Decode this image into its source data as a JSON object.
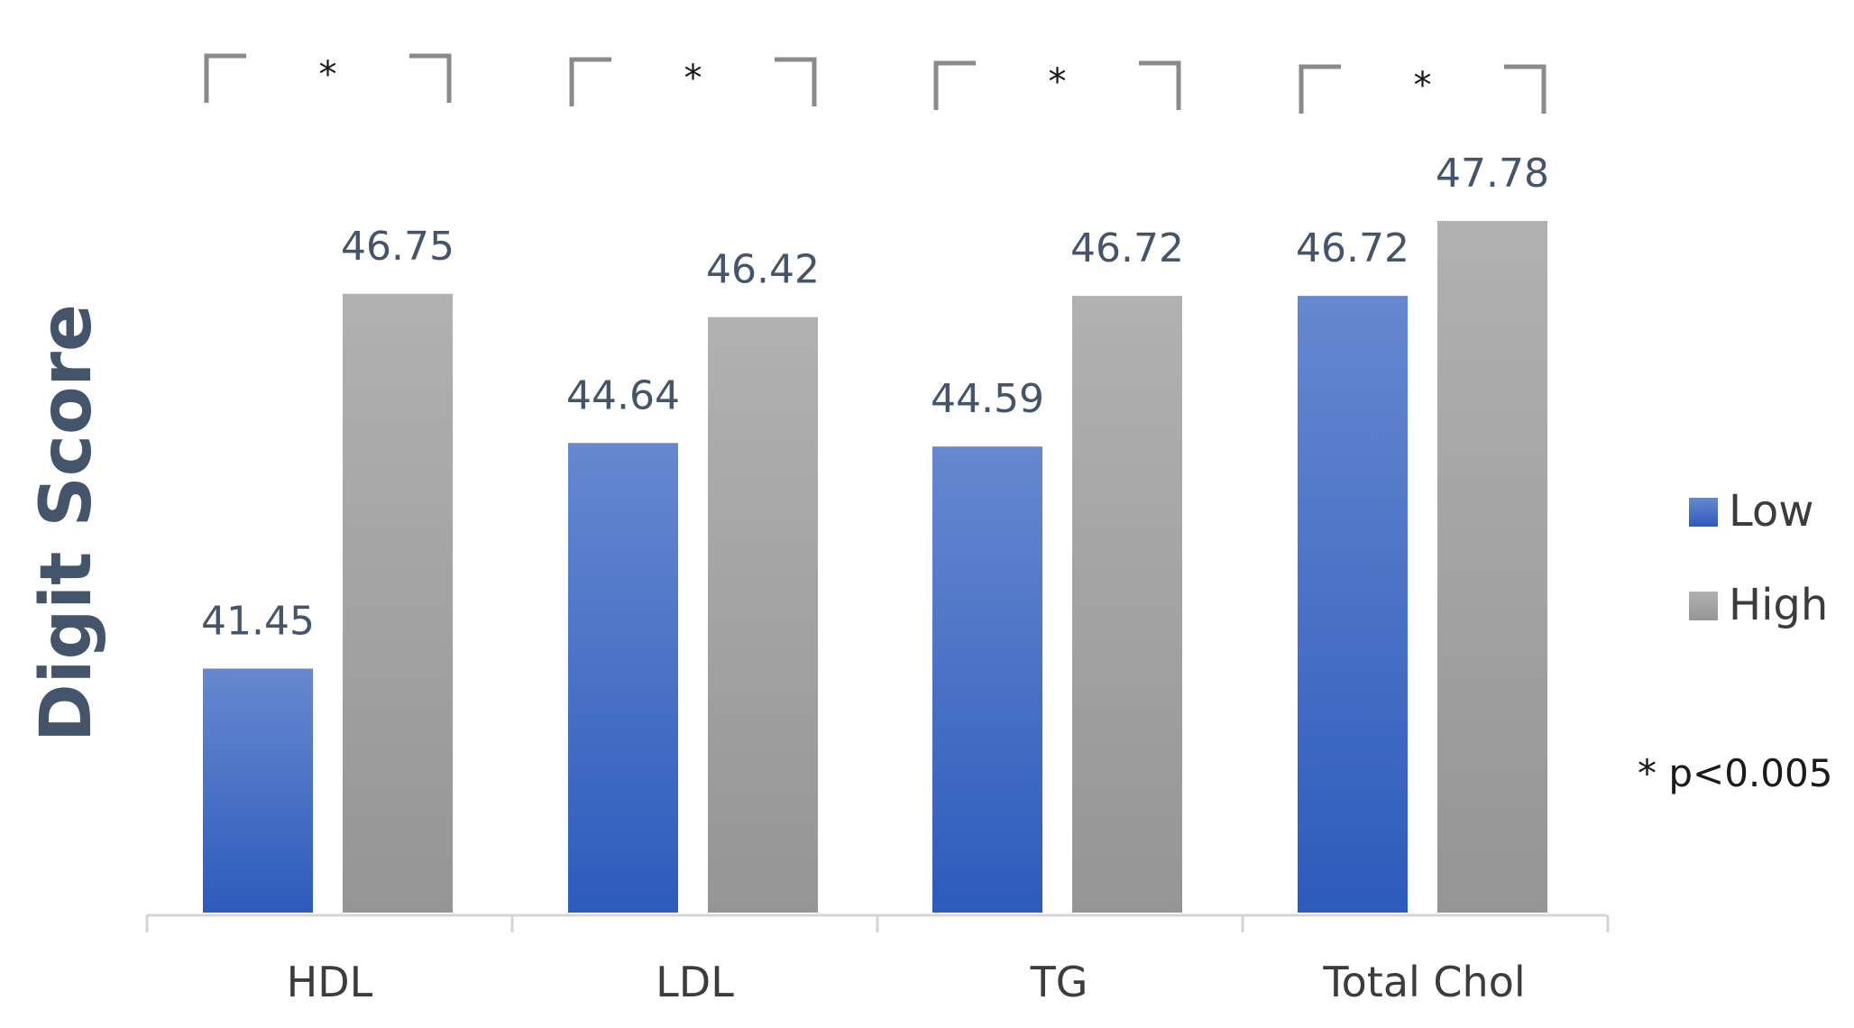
{
  "chart_data": {
    "type": "bar",
    "title": "",
    "xlabel": "",
    "ylabel": "Digit Score",
    "categories": [
      "HDL",
      "LDL",
      "TG",
      "Total Chol"
    ],
    "series": [
      {
        "name": "Low",
        "values": [
          41.45,
          44.64,
          44.59,
          46.72
        ],
        "color": "#3a68c6"
      },
      {
        "name": "High",
        "values": [
          46.75,
          46.42,
          46.72,
          47.78
        ],
        "color": "#a3a3a3"
      }
    ],
    "ylim": [
      38.0,
      48.5
    ],
    "grid": false,
    "legend_position": "right",
    "significance": {
      "marker": "*",
      "categories": [
        "HDL",
        "LDL",
        "TG",
        "Total Chol"
      ],
      "note": "* p<0.005"
    }
  }
}
